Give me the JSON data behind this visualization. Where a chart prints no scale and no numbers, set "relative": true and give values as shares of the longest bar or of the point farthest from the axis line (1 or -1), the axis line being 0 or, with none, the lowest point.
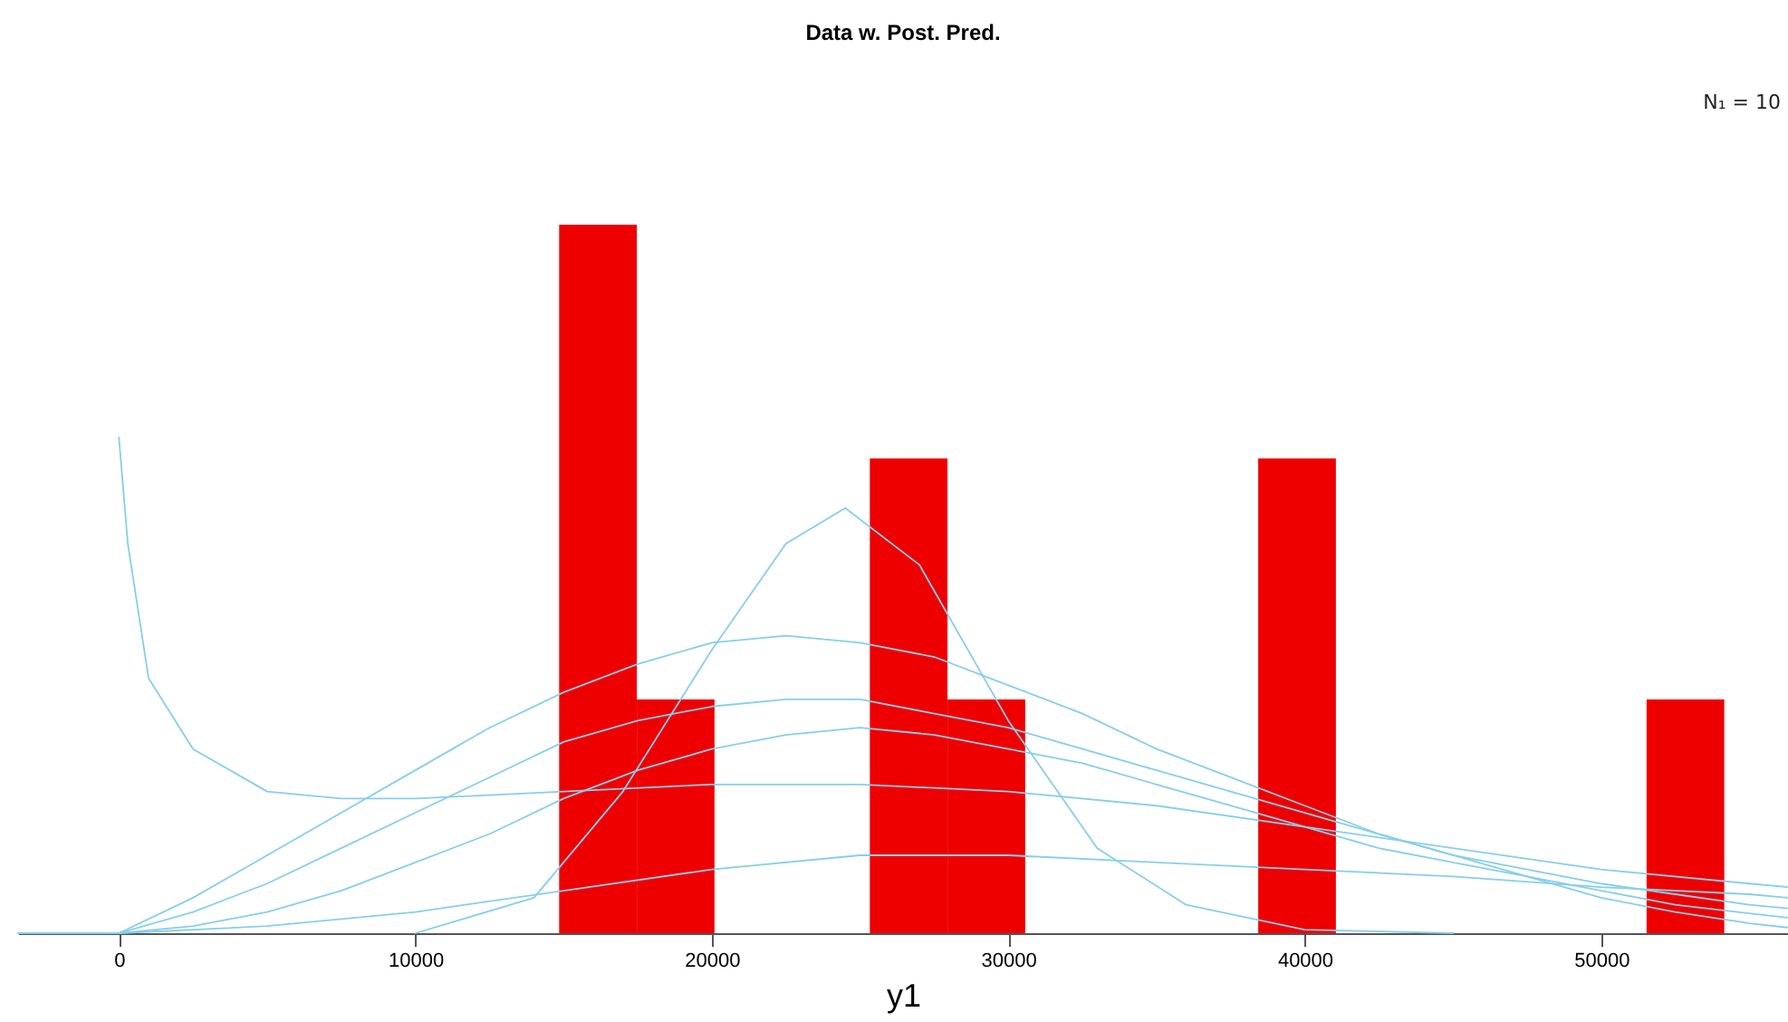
{
  "chart_data": {
    "type": "histogram",
    "title": "Data w. Post. Pred.",
    "xlabel": "y1",
    "annotations": [
      "N₁ = 10"
    ],
    "relative": true,
    "color": "#ee0000",
    "bins": [
      14850,
      17470,
      20090,
      22710,
      25330,
      27950,
      30570,
      33190,
      35810,
      38430,
      41050,
      43670,
      46290,
      48910,
      51530,
      54150
    ],
    "values": [
      1,
      0.33,
      0,
      0,
      0.67,
      0.33,
      0,
      0,
      0,
      0.67,
      0,
      0,
      0,
      0,
      0.33
    ],
    "xlim": [
      -3400,
      56300
    ],
    "xticks": [
      0,
      10000,
      20000,
      30000,
      40000,
      50000
    ],
    "series": [
      {
        "type": "line",
        "color": "#87ceeb",
        "x": [
          -3400,
          0,
          2500,
          5000,
          7500,
          10000,
          12500,
          15000,
          17500,
          20000,
          22500,
          25000,
          27500,
          30000,
          32500,
          35000,
          37500,
          40000,
          42500,
          45000,
          47500,
          50000,
          52500,
          55000,
          56300
        ],
        "values": [
          0,
          0,
          0.03,
          0.07,
          0.12,
          0.17,
          0.22,
          0.27,
          0.3,
          0.32,
          0.33,
          0.33,
          0.31,
          0.29,
          0.26,
          0.23,
          0.2,
          0.17,
          0.14,
          0.11,
          0.09,
          0.07,
          0.055,
          0.04,
          0.035
        ]
      },
      {
        "type": "line",
        "color": "#87ceeb",
        "x": [
          0,
          2500,
          5000,
          7500,
          10000,
          12500,
          15000,
          17500,
          20000,
          22500,
          25000,
          27500,
          30000,
          32500,
          35000,
          37500,
          40000,
          42500,
          45000,
          47500,
          50000,
          52500,
          55000,
          56300
        ],
        "values": [
          0,
          0.01,
          0.03,
          0.06,
          0.1,
          0.14,
          0.19,
          0.23,
          0.26,
          0.28,
          0.29,
          0.28,
          0.26,
          0.24,
          0.21,
          0.18,
          0.15,
          0.12,
          0.1,
          0.08,
          0.06,
          0.04,
          0.028,
          0.022
        ]
      },
      {
        "type": "line",
        "color": "#87ceeb",
        "x": [
          0,
          2500,
          5000,
          7500,
          10000,
          12500,
          15000,
          17500,
          20000,
          22500,
          25000,
          27500,
          30000,
          32500,
          35000,
          37500,
          40000,
          42500,
          45000,
          47500,
          50000,
          52500,
          55000,
          56300
        ],
        "values": [
          0,
          0.05,
          0.11,
          0.17,
          0.23,
          0.29,
          0.34,
          0.38,
          0.41,
          0.42,
          0.41,
          0.39,
          0.35,
          0.31,
          0.26,
          0.22,
          0.18,
          0.14,
          0.11,
          0.08,
          0.05,
          0.03,
          0.014,
          0.008
        ]
      },
      {
        "type": "line",
        "color": "#87ceeb",
        "x": [
          0,
          5000,
          10000,
          15000,
          20000,
          25000,
          30000,
          35000,
          40000,
          45000,
          50000,
          55000,
          56300
        ],
        "values": [
          0,
          0.01,
          0.03,
          0.06,
          0.09,
          0.11,
          0.11,
          0.1,
          0.09,
          0.08,
          0.065,
          0.055,
          0.05
        ]
      },
      {
        "type": "line",
        "color": "#87ceeb",
        "x": [
          10000,
          14000,
          17000,
          20000,
          22500,
          24500,
          27000,
          30000,
          33000,
          36000,
          40000,
          45000
        ],
        "values": [
          0,
          0.05,
          0.2,
          0.4,
          0.55,
          0.6,
          0.52,
          0.3,
          0.12,
          0.04,
          0.005,
          0
        ]
      },
      {
        "type": "line",
        "color": "#87ceeb",
        "x": [
          0,
          300,
          1000,
          2500,
          5000,
          7500,
          10000,
          15000,
          20000,
          25000,
          30000,
          35000,
          40000,
          45000,
          50000,
          55000,
          56300
        ],
        "values": [
          0.7,
          0.55,
          0.36,
          0.26,
          0.2,
          0.19,
          0.19,
          0.2,
          0.21,
          0.21,
          0.2,
          0.18,
          0.15,
          0.12,
          0.09,
          0.07,
          0.065
        ]
      }
    ]
  }
}
